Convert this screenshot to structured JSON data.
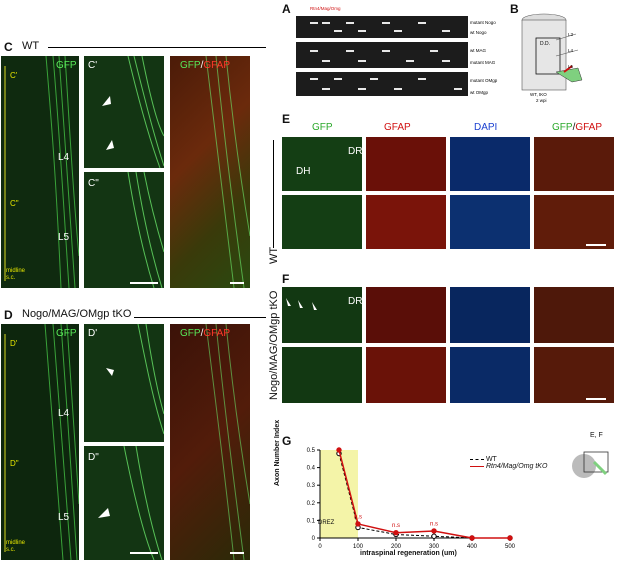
{
  "panels": {
    "A": "A",
    "B": "B",
    "C": "C",
    "D": "D",
    "E": "E",
    "F": "F",
    "G": "G"
  },
  "panel_c": {
    "title": "WT",
    "gfp": "GFP",
    "sub1": "C'",
    "sub2": "C\"",
    "l4": "L4",
    "l5": "L5",
    "midline": "midline",
    "sc": "s.c.",
    "merge_gfp": "GFP",
    "merge_gfap": "GFAP",
    "slash": "/"
  },
  "panel_d": {
    "title": "Nogo/MAG/OMgp tKO",
    "gfp": "GFP",
    "sub1": "D'",
    "sub2": "D\"",
    "l4": "L4",
    "l5": "L5",
    "midline": "midline",
    "sc": "s.c.",
    "merge_gfp": "GFP",
    "merge_gfap": "GFAP",
    "slash": "/"
  },
  "panel_a": {
    "lanes_red": "Rtn4/Mag/Omg",
    "lanes_black": "+/+",
    "rows": [
      "mutant Nogo",
      "wt Nogo",
      "wt MAG",
      "mutant MAG",
      "mutant OMgp",
      "wt OMgp"
    ],
    "marker": "MW"
  },
  "panel_b": {
    "drg": "D.D.",
    "l3": "L3",
    "l4": "L4",
    "l5": "L5",
    "caption1": "WT, tKO",
    "caption2": "2 wpi"
  },
  "panel_e": {
    "cols": [
      "GFP",
      "GFAP",
      "DAPI"
    ],
    "merge_gfp": "GFP",
    "merge_gfap": "GFAP",
    "slash": "/",
    "dh": "DH",
    "dr": "DR",
    "side": "WT"
  },
  "panel_f": {
    "dr": "DR",
    "side": "Nogo/MAG/OMgp tKO"
  },
  "panel_g_inset": "E, F",
  "chart_data": {
    "type": "line",
    "ylabel": "Axon Number Index",
    "xlabel": "intraspinal regeneration (um)",
    "shaded_label": "DREZ",
    "xticks": [
      "0",
      "100",
      "200",
      "300",
      "400",
      "500"
    ],
    "yticks": [
      "0",
      "0.1",
      "0.2",
      "0.3",
      "0.4",
      "0.5"
    ],
    "xlim": [
      0,
      500
    ],
    "ylim": [
      0,
      0.5
    ],
    "series": [
      {
        "name": "WT",
        "color": "#000000",
        "x": [
          50,
          100,
          200,
          300,
          400,
          500
        ],
        "y": [
          0.48,
          0.06,
          0.02,
          0.01,
          0.0,
          0.0
        ]
      },
      {
        "name": "Rtn4/Mag/Omg tKO",
        "color": "#d01010",
        "x": [
          50,
          100,
          200,
          300,
          400,
          500
        ],
        "y": [
          0.5,
          0.08,
          0.03,
          0.04,
          0.0,
          0.0
        ]
      }
    ],
    "annotations": [
      "n.s",
      "n.s",
      "n.s"
    ]
  }
}
